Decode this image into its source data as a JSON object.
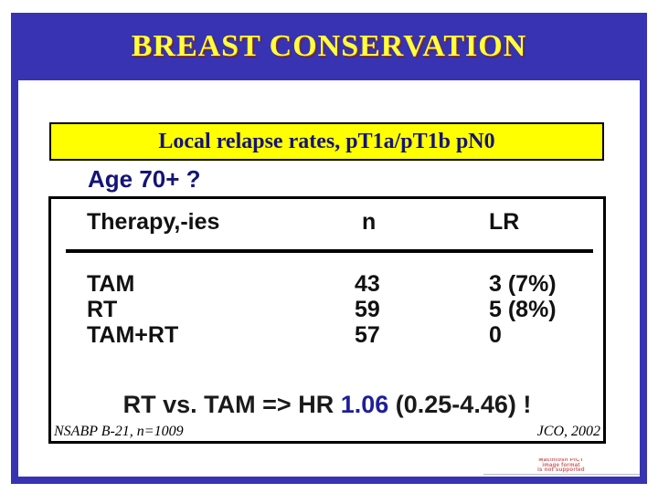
{
  "colors": {
    "frame_blue": "#3733b3",
    "title_yellow": "#ffff3d",
    "highlight_yellow": "#ffff00",
    "navy_text": "#141478",
    "hr_blue": "#1e1e9c",
    "pict_red": "#cd5c5c"
  },
  "header": {
    "title": "BREAST CONSERVATION"
  },
  "highlight": {
    "text": "Local relapse rates, pT1a/pT1b pN0"
  },
  "question": {
    "text": "Age 70+ ?"
  },
  "table": {
    "headers": [
      "Therapy,-ies",
      "n",
      "LR"
    ],
    "rows": [
      {
        "therapy": "TAM",
        "n": "43",
        "lr": "3 (7%)"
      },
      {
        "therapy": "RT",
        "n": "59",
        "lr": "5 (8%)"
      },
      {
        "therapy": "TAM+RT",
        "n": "57",
        "lr": "0"
      }
    ],
    "summary": {
      "prefix": "RT vs. TAM => HR ",
      "value": "1.06",
      "suffix": " (0.25-4.46) !"
    },
    "source_left": "NSABP B-21, n=1009",
    "source_right": "JCO, 2002"
  },
  "artifact": {
    "lines": [
      "Macintosh PICT",
      "image format",
      "is not supported"
    ]
  }
}
